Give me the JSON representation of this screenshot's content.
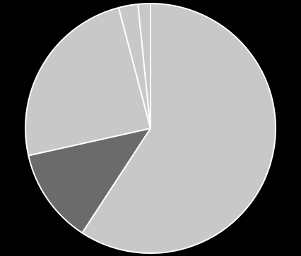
{
  "chart_data": {
    "type": "pie",
    "values": [
      59.2,
      12.3,
      24.4,
      2.5,
      1.6
    ],
    "colors": [
      "#c8c8c8",
      "#6b6b6b",
      "#c8c8c8",
      "#c8c8c8",
      "#c8c8c8"
    ],
    "start_angle": 0,
    "direction": "clockwise"
  }
}
